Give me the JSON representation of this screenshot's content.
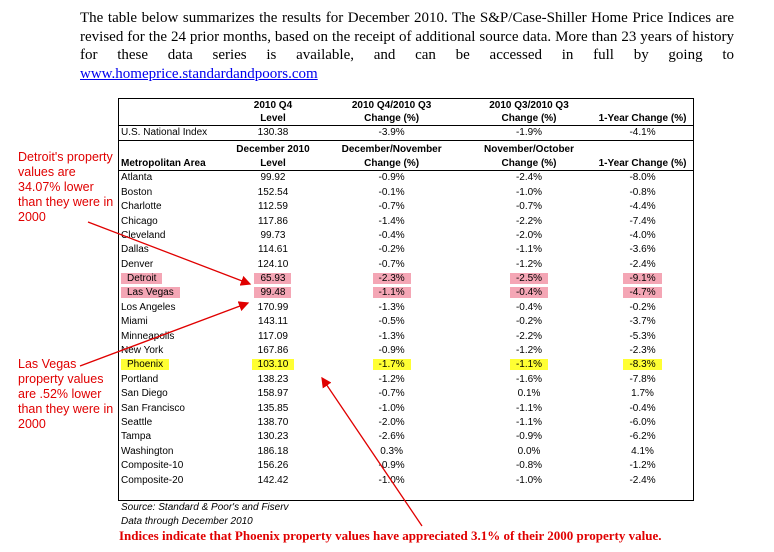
{
  "intro": {
    "text": "The table below summarizes the results for December 2010. The S&P/Case-Shiller Home Price Indices are revised for the 24 prior months, based on the receipt of additional source data. More than 23 years of history for these data series is available, and can be accessed in full by going to ",
    "link": "www.homeprice.standardandpoors.com"
  },
  "table": {
    "national_header": [
      "",
      "2010 Q4",
      "2010 Q4/2010 Q3",
      "2010 Q3/2010 Q3",
      ""
    ],
    "national_header2": [
      "",
      "Level",
      "Change (%)",
      "Change (%)",
      "1-Year Change (%)"
    ],
    "national_row": [
      "U.S. National Index",
      "130.38",
      "-3.9%",
      "-1.9%",
      "-4.1%"
    ],
    "metro_header": [
      "",
      "December 2010",
      "December/November",
      "November/October",
      ""
    ],
    "metro_header2": [
      "Metropolitan Area",
      "Level",
      "Change (%)",
      "Change (%)",
      "1-Year Change (%)"
    ],
    "rows": [
      [
        "Atlanta",
        "99.92",
        "-0.9%",
        "-2.4%",
        "-8.0%"
      ],
      [
        "Boston",
        "152.54",
        "-0.1%",
        "-1.0%",
        "-0.8%"
      ],
      [
        "Charlotte",
        "112.59",
        "-0.7%",
        "-0.7%",
        "-4.4%"
      ],
      [
        "Chicago",
        "117.86",
        "-1.4%",
        "-2.2%",
        "-7.4%"
      ],
      [
        "Cleveland",
        "99.73",
        "-0.4%",
        "-2.0%",
        "-4.0%"
      ],
      [
        "Dallas",
        "114.61",
        "-0.2%",
        "-1.1%",
        "-3.6%"
      ],
      [
        "Denver",
        "124.10",
        "-0.7%",
        "-1.2%",
        "-2.4%"
      ],
      [
        "Detroit",
        "65.93",
        "-2.3%",
        "-2.5%",
        "-9.1%"
      ],
      [
        "Las Vegas",
        "99.48",
        "-1.1%",
        "-0.4%",
        "-4.7%"
      ],
      [
        "Los Angeles",
        "170.99",
        "-1.3%",
        "-0.4%",
        "-0.2%"
      ],
      [
        "Miami",
        "143.11",
        "-0.5%",
        "-0.2%",
        "-3.7%"
      ],
      [
        "Minneapolis",
        "117.09",
        "-1.3%",
        "-2.2%",
        "-5.3%"
      ],
      [
        "New York",
        "167.86",
        "-0.9%",
        "-1.2%",
        "-2.3%"
      ],
      [
        "Phoenix",
        "103.10",
        "-1.7%",
        "-1.1%",
        "-8.3%"
      ],
      [
        "Portland",
        "138.23",
        "-1.2%",
        "-1.6%",
        "-7.8%"
      ],
      [
        "San Diego",
        "158.97",
        "-0.7%",
        "0.1%",
        "1.7%"
      ],
      [
        "San Francisco",
        "135.85",
        "-1.0%",
        "-1.1%",
        "-0.4%"
      ],
      [
        "Seattle",
        "138.70",
        "-2.0%",
        "-1.1%",
        "-6.0%"
      ],
      [
        "Tampa",
        "130.23",
        "-2.6%",
        "-0.9%",
        "-6.2%"
      ],
      [
        "Washington",
        "186.18",
        "0.3%",
        "0.0%",
        "4.1%"
      ],
      [
        "Composite-10",
        "156.26",
        "-0.9%",
        "-0.8%",
        "-1.2%"
      ],
      [
        "Composite-20",
        "142.42",
        "-1.0%",
        "-1.0%",
        "-2.4%"
      ]
    ],
    "highlight_pink": [
      "Detroit",
      "Las Vegas"
    ],
    "highlight_yellow": [
      "Phoenix"
    ],
    "highlight_pink_color": "#f4a6b5",
    "highlight_yellow_color": "#ffff33"
  },
  "source": "Source: Standard & Poor's and Fiserv",
  "data_through": "Data through December 2010",
  "annotations": {
    "detroit": "Detroit's property values are 34.07% lower than they were in 2000",
    "las_vegas": "Las Vegas property values are .52% lower than they were in 2000",
    "phoenix": "Indices indicate that Phoenix property values have appreciated 3.1% of their 2000 property value.",
    "color": "#e00000"
  }
}
